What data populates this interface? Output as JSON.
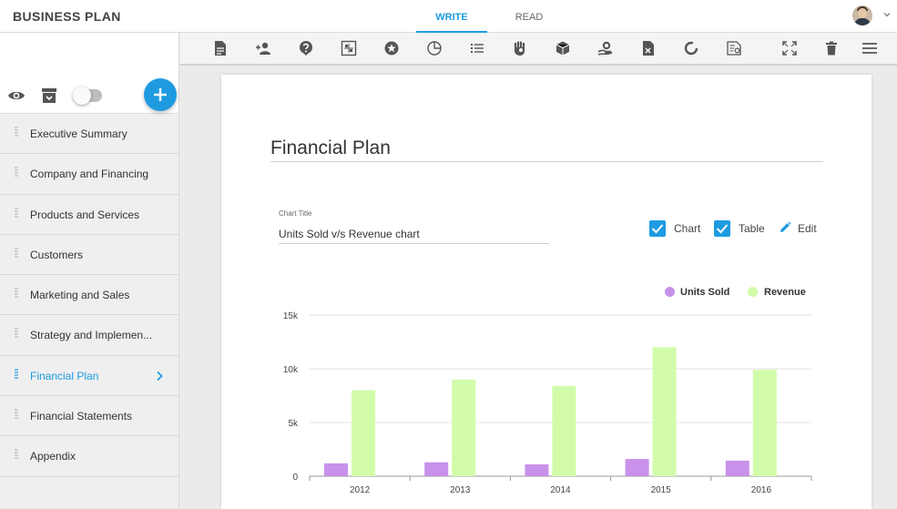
{
  "app": {
    "title": "BUSINESS PLAN"
  },
  "tabs": [
    {
      "label": "WRITE"
    },
    {
      "label": "READ"
    }
  ],
  "toolbar": {
    "icons": [
      "document-icon",
      "add-person-icon",
      "help-icon",
      "puzzle-icon",
      "star-icon",
      "pie-chart-icon",
      "list-icon",
      "hand-stop-icon",
      "cube-icon",
      "hand-coin-icon",
      "calculator-icon",
      "donut-icon",
      "invoice-icon",
      "fullscreen-icon",
      "trash-icon",
      "menu-icon"
    ]
  },
  "sidebar": {
    "items": [
      {
        "label": "Executive Summary"
      },
      {
        "label": "Company and Financing"
      },
      {
        "label": "Products and Services"
      },
      {
        "label": "Customers"
      },
      {
        "label": "Marketing and Sales"
      },
      {
        "label": "Strategy and Implemen..."
      },
      {
        "label": "Financial Plan",
        "active": true
      },
      {
        "label": "Financial Statements"
      },
      {
        "label": "Appendix"
      }
    ]
  },
  "doc": {
    "title": "Financial Plan",
    "chart_title_label": "Chart Title",
    "chart_title_value": "Units Sold v/s Revenue chart",
    "options": {
      "chart_label": "Chart",
      "table_label": "Table",
      "edit_label": "Edit"
    }
  },
  "colors": {
    "accent": "#1e9be0",
    "units_sold": "#c891ea",
    "revenue": "#d2fcaa"
  },
  "chart_data": {
    "type": "bar",
    "categories": [
      "2012",
      "2013",
      "2014",
      "2015",
      "2016"
    ],
    "series": [
      {
        "name": "Units Sold",
        "values": [
          1200,
          1300,
          1100,
          1600,
          1450
        ]
      },
      {
        "name": "Revenue",
        "values": [
          8000,
          9000,
          8400,
          12000,
          9900
        ]
      }
    ],
    "yticks": [
      "0",
      "5k",
      "10k",
      "15k"
    ],
    "ylim": [
      0,
      15000
    ],
    "legend": "top-right",
    "grid": true
  }
}
